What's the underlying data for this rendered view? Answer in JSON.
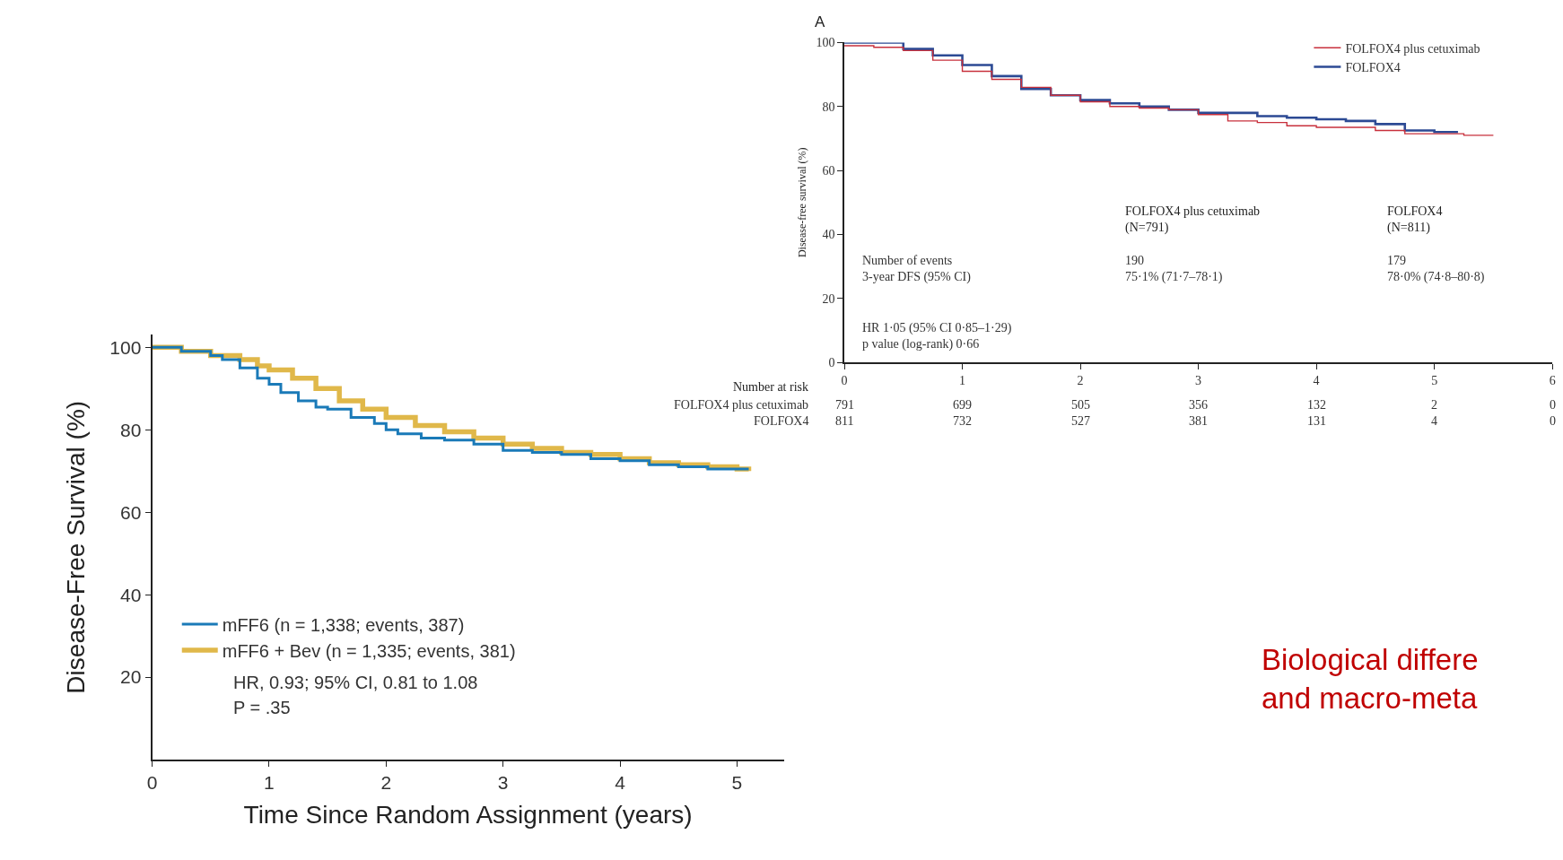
{
  "chart_data": [
    {
      "type": "step",
      "xlabel": "Time Since Random Assignment (years)",
      "ylabel": "Disease-Free Survival (%)",
      "xlim": [
        0,
        5.4
      ],
      "ylim": [
        0,
        103
      ],
      "xticks": [
        0,
        1,
        2,
        3,
        4,
        5
      ],
      "yticks": [
        20,
        40,
        60,
        80,
        100
      ],
      "legend": "bottom left",
      "marker": "none",
      "line_style": "solid",
      "annotations": [
        "HR, 0.93; 95% CI, 0.81 to 1.08",
        "P = .35"
      ],
      "series": [
        {
          "name": "mFF6 (n = 1,338; events, 387)",
          "color": "#1a7ab8",
          "x": [
            0,
            0.25,
            0.5,
            0.6,
            0.75,
            0.9,
            1.0,
            1.1,
            1.25,
            1.4,
            1.5,
            1.7,
            1.9,
            2.0,
            2.1,
            2.3,
            2.5,
            2.75,
            3.0,
            3.25,
            3.5,
            3.75,
            4.0,
            4.25,
            4.5,
            4.75,
            5.0,
            5.1
          ],
          "values": [
            100,
            99,
            98,
            97,
            95,
            92.5,
            91,
            89,
            87,
            85.5,
            85,
            83,
            81.5,
            80,
            79,
            78,
            77.5,
            76.5,
            75,
            74.5,
            74,
            73,
            72.5,
            71.5,
            71,
            70.5,
            70.5,
            70.5
          ]
        },
        {
          "name": "mFF6 + Bev (n = 1,335; events, 381)",
          "color": "#e0b84a",
          "x": [
            0,
            0.25,
            0.5,
            0.75,
            0.9,
            1.0,
            1.2,
            1.4,
            1.6,
            1.8,
            2.0,
            2.25,
            2.5,
            2.75,
            3.0,
            3.25,
            3.5,
            3.75,
            4.0,
            4.25,
            4.5,
            4.75,
            5.0,
            5.1
          ],
          "values": [
            100,
            99,
            98,
            97,
            95.5,
            94.5,
            92.5,
            90,
            87,
            85,
            83,
            81,
            79.5,
            78,
            76.5,
            75.5,
            74.5,
            74,
            73,
            72,
            71.5,
            71,
            70.5,
            70
          ]
        }
      ]
    },
    {
      "type": "step",
      "title": "A",
      "ylabel": "Disease-free survival (%)",
      "xlim": [
        0,
        6
      ],
      "ylim": [
        0,
        100
      ],
      "xticks": [
        0,
        1,
        2,
        3,
        4,
        5,
        6
      ],
      "yticks": [
        0,
        20,
        40,
        60,
        80,
        100
      ],
      "legend": "top right",
      "marker": "none",
      "line_style": "solid",
      "annotations": [
        "FOLFOX4 plus cetuximab\n(N=791)",
        "FOLFOX4\n(N=811)",
        "Number of events\n3-year DFS (95% CI)",
        "190\n75·1% (71·7–78·1)",
        "179\n78·0% (74·8–80·8)",
        "HR 1·05 (95% CI 0·85–1·29)\np value (log-rank) 0·66",
        "Number at risk",
        "FOLFOX4 plus cetuximab",
        "FOLFOX4",
        "791",
        "699",
        "505",
        "356",
        "132",
        "2",
        "0",
        "811",
        "732",
        "527",
        "381",
        "131",
        "4",
        "0",
        "Biological differe\nand macro-meta"
      ],
      "series": [
        {
          "name": "FOLFOX4 plus cetuximab",
          "color": "#c8303c",
          "x": [
            0,
            0.25,
            0.5,
            0.75,
            1.0,
            1.25,
            1.5,
            1.75,
            2.0,
            2.25,
            2.5,
            2.75,
            3.0,
            3.25,
            3.5,
            3.75,
            4.0,
            4.25,
            4.5,
            4.75,
            5.0,
            5.25,
            5.5
          ],
          "values": [
            99,
            98.5,
            97.5,
            94.5,
            91,
            88.5,
            86,
            83.5,
            81.5,
            80,
            79.5,
            79,
            77.5,
            75.5,
            75,
            74,
            73.5,
            73.5,
            72.5,
            71.5,
            71.5,
            71,
            71
          ]
        },
        {
          "name": "FOLFOX4",
          "color": "#2c4a94",
          "x": [
            0,
            0.25,
            0.5,
            0.75,
            1.0,
            1.25,
            1.5,
            1.75,
            2.0,
            2.25,
            2.5,
            2.75,
            3.0,
            3.25,
            3.5,
            3.75,
            4.0,
            4.25,
            4.5,
            4.75,
            5.0,
            5.2
          ],
          "values": [
            100,
            100,
            98,
            96,
            93,
            89.5,
            85.5,
            83.5,
            82,
            81,
            80,
            79,
            78,
            78,
            77,
            76.5,
            76,
            75.5,
            74.5,
            72.5,
            72,
            72
          ]
        }
      ]
    }
  ]
}
